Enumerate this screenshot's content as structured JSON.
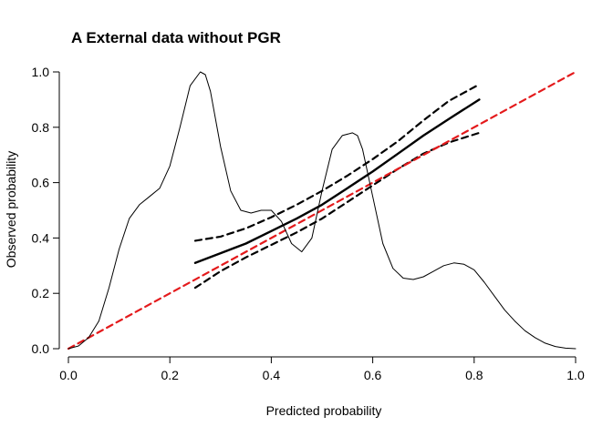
{
  "chart_data": {
    "type": "line",
    "title": "A External data without PGR",
    "xlabel": "Predicted probability",
    "ylabel": "Observed probability",
    "xlim": [
      0,
      1
    ],
    "ylim": [
      0,
      1
    ],
    "x_ticks": [
      "0.0",
      "0.2",
      "0.4",
      "0.6",
      "0.8",
      "1.0"
    ],
    "y_ticks": [
      "0.0",
      "0.2",
      "0.4",
      "0.6",
      "0.8",
      "1.0"
    ],
    "grid": false,
    "legend": "none",
    "series": [
      {
        "style": "solid-thick",
        "color": "#000000",
        "x": [
          0.25,
          0.3,
          0.35,
          0.4,
          0.45,
          0.5,
          0.55,
          0.6,
          0.65,
          0.7,
          0.75,
          0.81
        ],
        "y": [
          0.31,
          0.345,
          0.38,
          0.425,
          0.47,
          0.52,
          0.58,
          0.64,
          0.705,
          0.77,
          0.83,
          0.9
        ]
      },
      {
        "style": "dashed",
        "color": "#000000",
        "x": [
          0.25,
          0.3,
          0.35,
          0.4,
          0.45,
          0.5,
          0.55,
          0.6,
          0.65,
          0.7,
          0.75,
          0.81
        ],
        "y": [
          0.39,
          0.405,
          0.435,
          0.475,
          0.52,
          0.57,
          0.625,
          0.685,
          0.75,
          0.825,
          0.895,
          0.955
        ]
      },
      {
        "style": "dashed",
        "color": "#000000",
        "x": [
          0.25,
          0.3,
          0.35,
          0.4,
          0.45,
          0.5,
          0.55,
          0.6,
          0.65,
          0.7,
          0.75,
          0.81
        ],
        "y": [
          0.22,
          0.28,
          0.33,
          0.375,
          0.42,
          0.47,
          0.53,
          0.59,
          0.65,
          0.705,
          0.745,
          0.78
        ]
      },
      {
        "style": "dashed-red",
        "color": "#e41a1c",
        "x": [
          0,
          1
        ],
        "y": [
          0,
          1
        ]
      },
      {
        "style": "solid-thin",
        "color": "#000000",
        "x": [
          0,
          0.02,
          0.04,
          0.06,
          0.08,
          0.1,
          0.12,
          0.14,
          0.16,
          0.18,
          0.2,
          0.22,
          0.24,
          0.26,
          0.27,
          0.28,
          0.3,
          0.32,
          0.34,
          0.36,
          0.38,
          0.4,
          0.42,
          0.44,
          0.46,
          0.48,
          0.5,
          0.52,
          0.54,
          0.56,
          0.57,
          0.58,
          0.6,
          0.62,
          0.64,
          0.66,
          0.68,
          0.7,
          0.72,
          0.74,
          0.76,
          0.78,
          0.8,
          0.82,
          0.84,
          0.86,
          0.88,
          0.9,
          0.92,
          0.94,
          0.96,
          0.98,
          1.0
        ],
        "y": [
          0.0,
          0.01,
          0.04,
          0.1,
          0.22,
          0.36,
          0.47,
          0.52,
          0.55,
          0.58,
          0.66,
          0.8,
          0.95,
          1.0,
          0.99,
          0.93,
          0.73,
          0.57,
          0.5,
          0.49,
          0.5,
          0.5,
          0.46,
          0.38,
          0.35,
          0.4,
          0.57,
          0.72,
          0.77,
          0.78,
          0.77,
          0.72,
          0.55,
          0.38,
          0.29,
          0.255,
          0.25,
          0.26,
          0.28,
          0.3,
          0.31,
          0.305,
          0.285,
          0.24,
          0.19,
          0.14,
          0.1,
          0.065,
          0.04,
          0.02,
          0.008,
          0.002,
          0.0
        ]
      }
    ]
  }
}
